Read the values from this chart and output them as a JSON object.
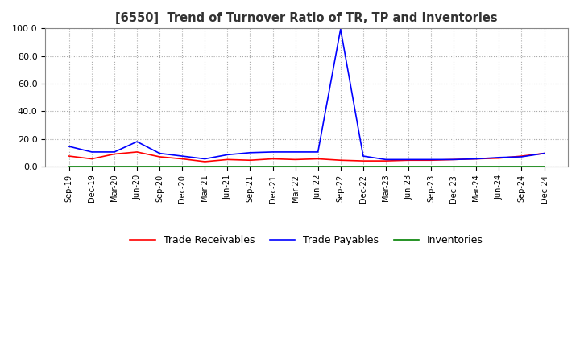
{
  "title": "[6550]  Trend of Turnover Ratio of TR, TP and Inventories",
  "xlabels": [
    "Sep-19",
    "Dec-19",
    "Mar-20",
    "Jun-20",
    "Sep-20",
    "Dec-20",
    "Mar-21",
    "Jun-21",
    "Sep-21",
    "Dec-21",
    "Mar-22",
    "Jun-22",
    "Sep-22",
    "Dec-22",
    "Mar-23",
    "Jun-23",
    "Sep-23",
    "Dec-23",
    "Mar-24",
    "Jun-24",
    "Sep-24",
    "Dec-24"
  ],
  "ylim": [
    0,
    100
  ],
  "yticks": [
    0.0,
    20.0,
    40.0,
    60.0,
    80.0,
    100.0
  ],
  "trade_receivables": [
    7.5,
    5.5,
    9.0,
    10.5,
    7.0,
    5.5,
    3.5,
    5.0,
    4.5,
    5.5,
    5.0,
    5.5,
    4.5,
    4.0,
    4.0,
    4.5,
    4.5,
    5.0,
    5.5,
    6.0,
    7.5,
    9.5
  ],
  "trade_payables": [
    14.5,
    10.5,
    10.5,
    18.0,
    9.5,
    7.5,
    5.5,
    8.5,
    10.0,
    10.5,
    10.5,
    10.5,
    99.5,
    7.5,
    5.0,
    5.0,
    5.0,
    5.0,
    5.5,
    6.5,
    7.0,
    9.5
  ],
  "inventories": [
    0.0,
    0.0,
    0.0,
    0.0,
    0.0,
    0.0,
    0.0,
    0.0,
    0.0,
    0.0,
    0.0,
    0.0,
    0.0,
    0.0,
    0.0,
    0.0,
    0.0,
    0.0,
    0.0,
    0.0,
    0.0,
    0.0
  ],
  "tr_color": "#ff0000",
  "tp_color": "#0000ff",
  "inv_color": "#008000",
  "legend_labels": [
    "Trade Receivables",
    "Trade Payables",
    "Inventories"
  ],
  "bg_color": "#ffffff",
  "grid_color": "#aaaaaa"
}
